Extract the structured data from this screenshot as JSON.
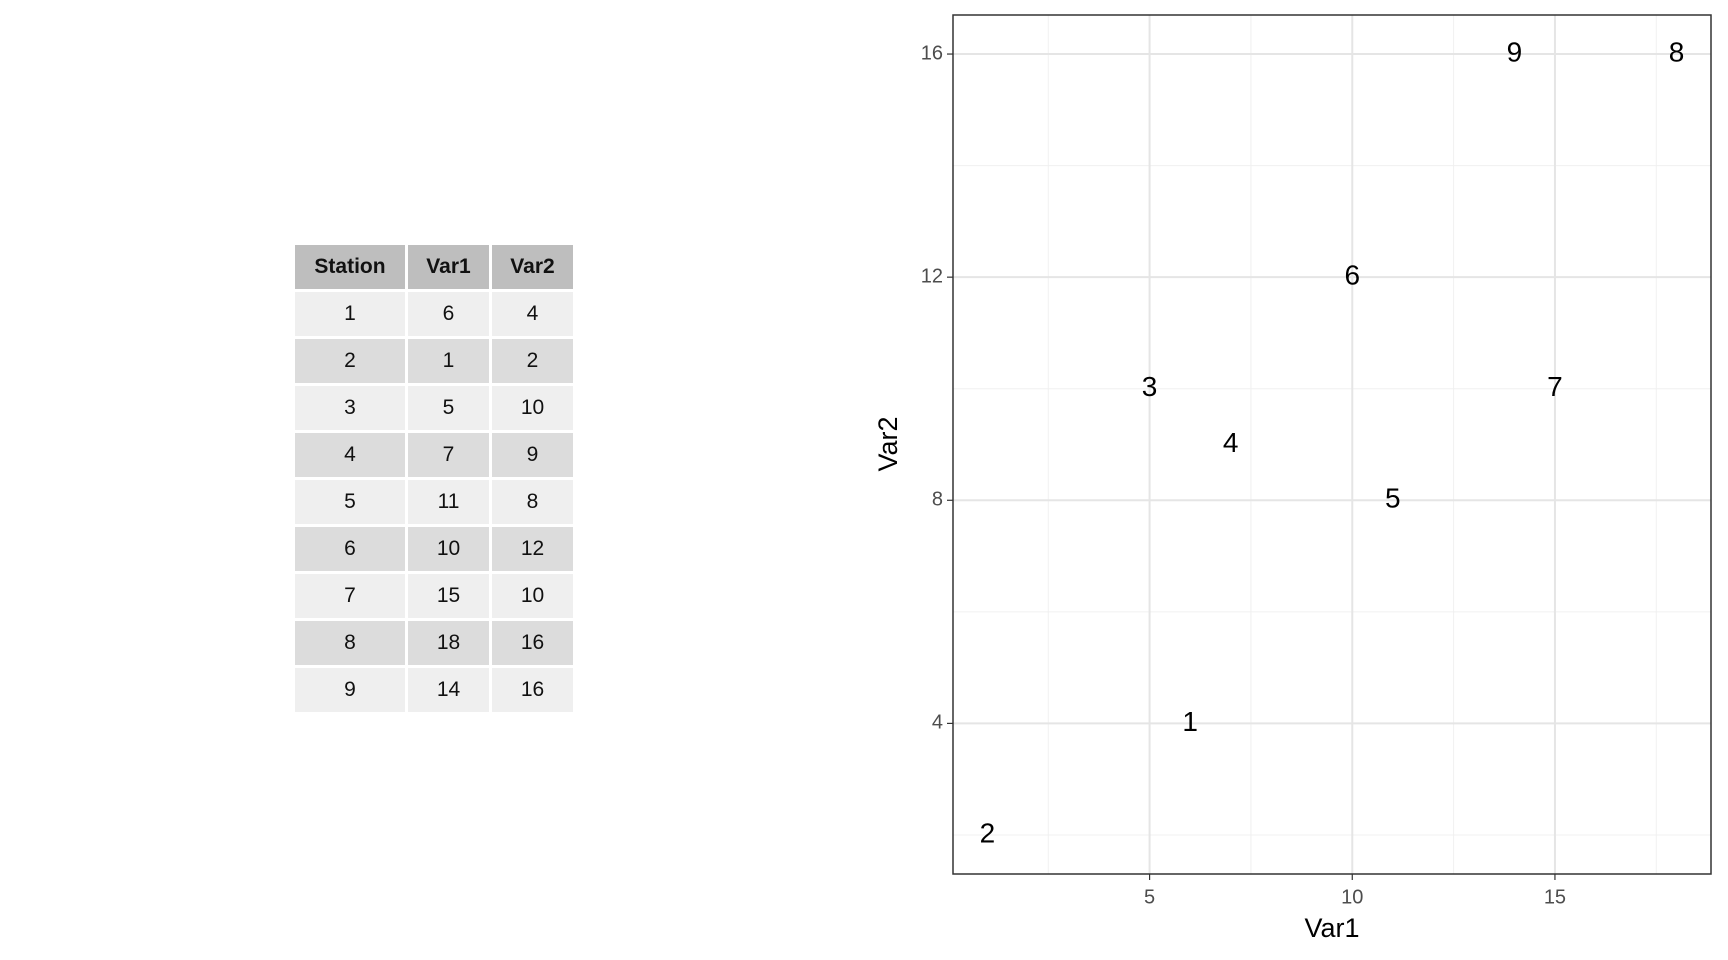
{
  "table": {
    "header": [
      "Station",
      "Var1",
      "Var2"
    ],
    "rows": [
      [
        1,
        6,
        4
      ],
      [
        2,
        1,
        2
      ],
      [
        3,
        5,
        10
      ],
      [
        4,
        7,
        9
      ],
      [
        5,
        11,
        8
      ],
      [
        6,
        10,
        12
      ],
      [
        7,
        15,
        10
      ],
      [
        8,
        18,
        16
      ],
      [
        9,
        14,
        16
      ]
    ]
  },
  "chart_data": {
    "type": "scatter",
    "x_label": "Var1",
    "y_label": "Var2",
    "x": [
      6,
      1,
      5,
      7,
      11,
      10,
      15,
      18,
      14
    ],
    "values": [
      4,
      2,
      10,
      9,
      8,
      12,
      10,
      16,
      16
    ],
    "point_labels": [
      "1",
      "2",
      "3",
      "4",
      "5",
      "6",
      "7",
      "8",
      "9"
    ],
    "xlim": [
      0.15,
      18.85
    ],
    "ylim": [
      1.3,
      16.7
    ],
    "xticks": [
      5,
      10,
      15
    ],
    "yticks": [
      4,
      8,
      12,
      16
    ],
    "x_minor_ticks": [
      2.5,
      7.5,
      12.5,
      17.5
    ],
    "y_minor_ticks": [
      2,
      6,
      10,
      14
    ],
    "grid": true
  }
}
